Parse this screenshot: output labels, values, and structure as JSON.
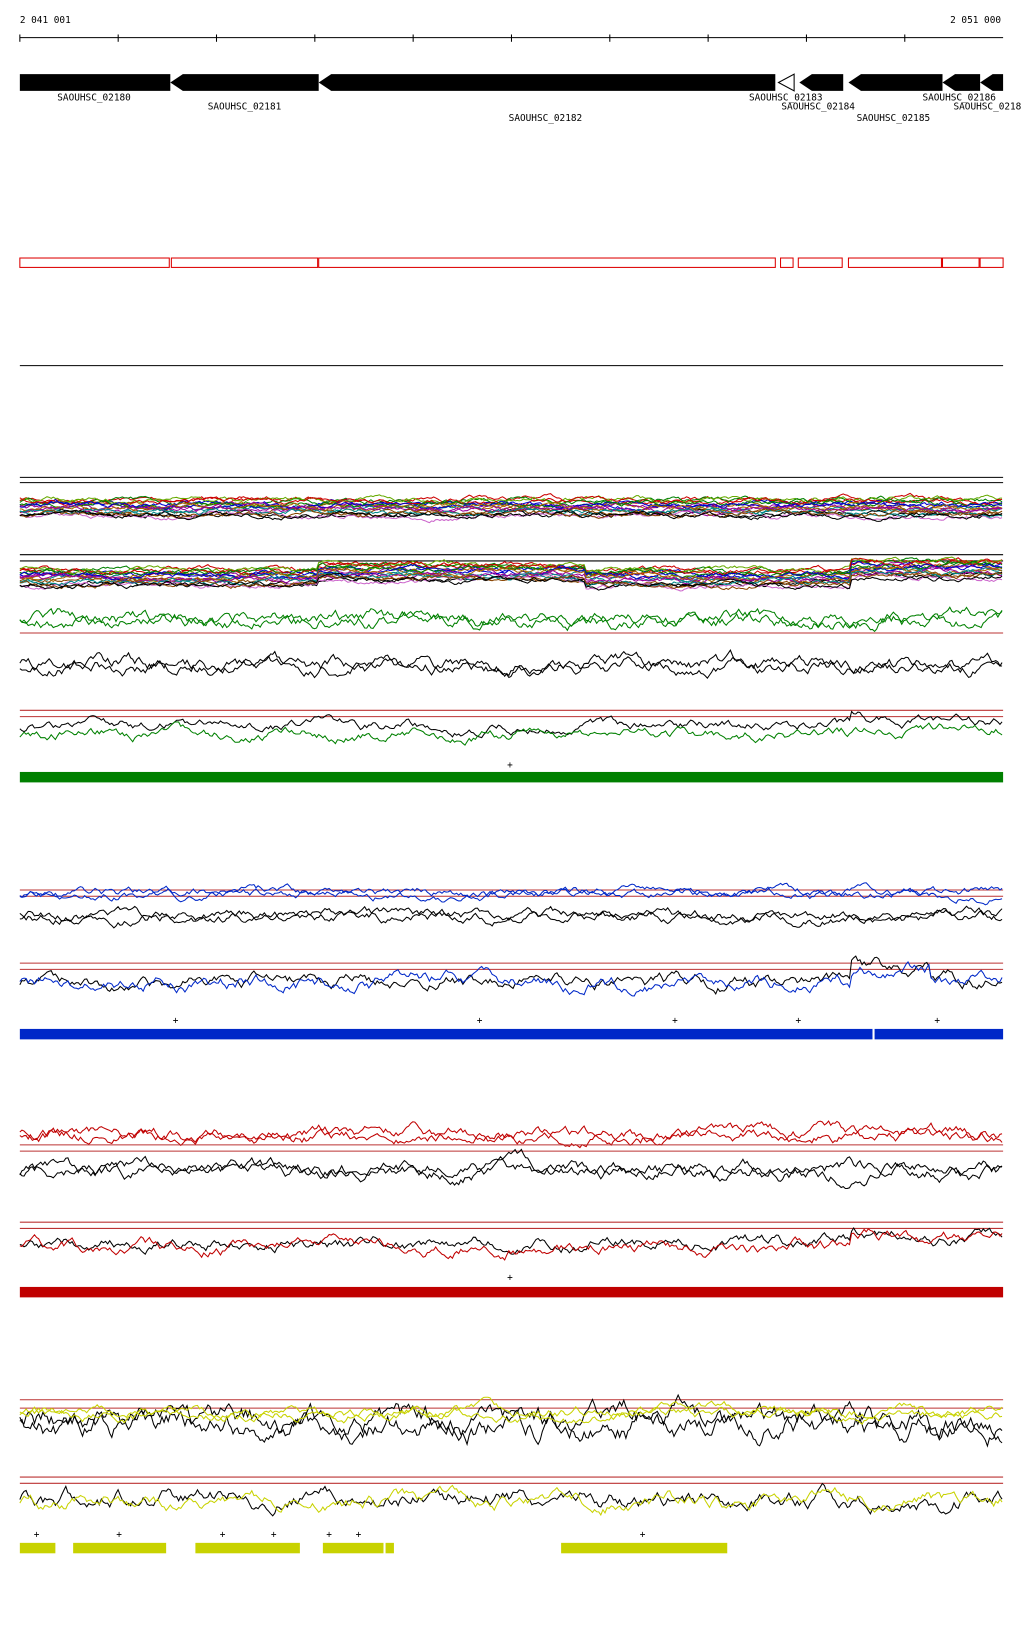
{
  "ruler": {
    "start": "2 041 001",
    "end": "2 051 000"
  },
  "genes": [
    {
      "label": "SAOUHSC_02180"
    },
    {
      "label": "SAOUHSC_02181"
    },
    {
      "label": "SAOUHSC_02182"
    },
    {
      "label": "SAOUHSC_02183"
    },
    {
      "label": "SAOUHSC_02184"
    },
    {
      "label": "SAOUHSC_02185"
    },
    {
      "label": "SAOUHSC_02186"
    },
    {
      "label": "SAOUHSC_0218"
    }
  ],
  "strand_mark": "+"
}
